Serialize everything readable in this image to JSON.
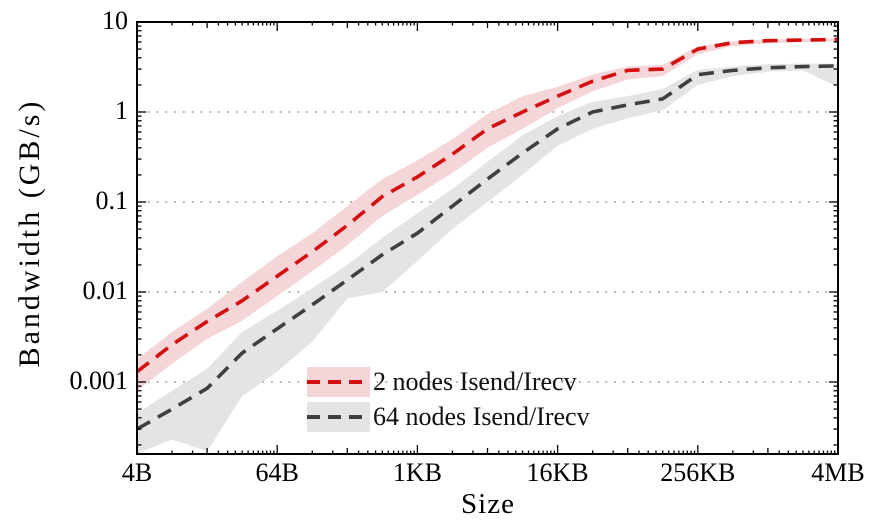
{
  "chart_data": {
    "type": "line",
    "title": "",
    "xlabel": "Size",
    "ylabel": "Bandwidth (GB/s)",
    "x_scale": "log2",
    "y_scale": "log10",
    "x_range_bytes": [
      4,
      4194304
    ],
    "y_range": [
      0.00016,
      10
    ],
    "grid": "horizontal-dotted-at-decades",
    "legend_position": "inside-bottom-center",
    "background": "#ffffff",
    "axis_color": "#000000",
    "grid_color": "#999999",
    "sizes": [
      "4B",
      "8B",
      "16B",
      "32B",
      "64B",
      "128B",
      "256B",
      "512B",
      "1KB",
      "2KB",
      "4KB",
      "8KB",
      "16KB",
      "32KB",
      "64KB",
      "128KB",
      "256KB",
      "512KB",
      "1MB",
      "2MB",
      "4MB"
    ],
    "sizes_bytes": [
      4,
      8,
      16,
      32,
      64,
      128,
      256,
      512,
      1024,
      2048,
      4096,
      8192,
      16384,
      32768,
      65536,
      131072,
      262144,
      524288,
      1048576,
      2097152,
      4194304
    ],
    "xticks": [
      {
        "bytes": 4,
        "label": "4B"
      },
      {
        "bytes": 64,
        "label": "64B"
      },
      {
        "bytes": 1024,
        "label": "1KB"
      },
      {
        "bytes": 16384,
        "label": "16KB"
      },
      {
        "bytes": 262144,
        "label": "256KB"
      },
      {
        "bytes": 4194304,
        "label": "4MB"
      }
    ],
    "yticks": [
      {
        "value": 10,
        "label": "10"
      },
      {
        "value": 1,
        "label": "1"
      },
      {
        "value": 0.1,
        "label": "0.1"
      },
      {
        "value": 0.01,
        "label": "0.01"
      },
      {
        "value": 0.001,
        "label": "0.001"
      }
    ],
    "series": [
      {
        "name": "2 nodes Isend/Irecv",
        "style": "dashed",
        "color": "#d40f0f",
        "band_color": "#f5d6d8",
        "values": [
          0.0013,
          0.0026,
          0.0047,
          0.008,
          0.015,
          0.028,
          0.055,
          0.115,
          0.19,
          0.34,
          0.65,
          1.0,
          1.5,
          2.2,
          2.9,
          3.0,
          5.0,
          5.9,
          6.2,
          6.3,
          6.4
        ],
        "band_low": [
          0.0008,
          0.0016,
          0.003,
          0.0048,
          0.009,
          0.017,
          0.033,
          0.07,
          0.12,
          0.21,
          0.4,
          0.65,
          1.1,
          1.7,
          2.3,
          2.5,
          4.4,
          5.4,
          5.8,
          6.0,
          6.1
        ],
        "band_high": [
          0.0018,
          0.0036,
          0.0065,
          0.013,
          0.025,
          0.045,
          0.09,
          0.18,
          0.29,
          0.5,
          0.95,
          1.5,
          1.9,
          2.6,
          3.2,
          3.35,
          5.4,
          6.1,
          6.4,
          6.5,
          6.6
        ]
      },
      {
        "name": "64 nodes Isend/Irecv",
        "style": "dashed",
        "color": "#3f3f3f",
        "band_color": "#e4e4e4",
        "values": [
          0.0003,
          0.0005,
          0.00085,
          0.0021,
          0.0039,
          0.0072,
          0.0136,
          0.026,
          0.045,
          0.09,
          0.18,
          0.35,
          0.65,
          1.0,
          1.2,
          1.4,
          2.6,
          2.9,
          3.1,
          3.2,
          3.25
        ],
        "band_low": [
          0.00016,
          0.00023,
          0.00017,
          0.0007,
          0.0013,
          0.0028,
          0.0085,
          0.01,
          0.022,
          0.05,
          0.1,
          0.2,
          0.42,
          0.65,
          0.85,
          1.05,
          2.0,
          2.5,
          2.8,
          2.9,
          1.9
        ],
        "band_high": [
          0.00045,
          0.0008,
          0.0014,
          0.0036,
          0.0062,
          0.011,
          0.02,
          0.04,
          0.075,
          0.14,
          0.28,
          0.55,
          0.9,
          1.3,
          1.5,
          1.8,
          2.95,
          3.2,
          3.4,
          3.45,
          3.45
        ]
      }
    ]
  }
}
